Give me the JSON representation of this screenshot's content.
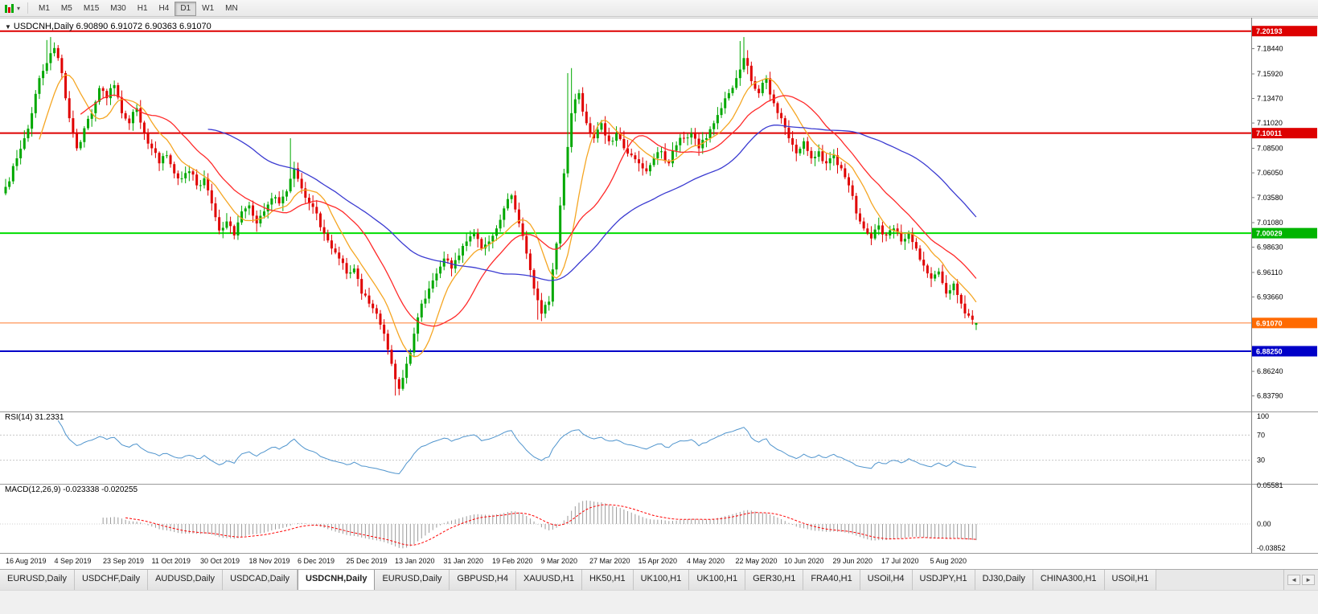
{
  "icons": {
    "caret_down": "▾",
    "caret_down_small": "▼",
    "scroll_left": "◄",
    "scroll_right": "►"
  },
  "toolbar": {
    "timeframes": [
      "M1",
      "M5",
      "M15",
      "M30",
      "H1",
      "H4",
      "D1",
      "W1",
      "MN"
    ],
    "active_timeframe": "D1"
  },
  "chart_header": {
    "text": "USDCNH,Daily  6.90890 6.91072 6.90363 6.91070"
  },
  "indicator_labels": {
    "rsi": "RSI(14) 31.2331",
    "macd": "MACD(12,26,9) -0.023338 -0.020255"
  },
  "tabs": {
    "items": [
      "EURUSD,Daily",
      "USDCHF,Daily",
      "AUDUSD,Daily",
      "USDCAD,Daily",
      "USDCNH,Daily",
      "EURUSD,Daily",
      "GBPUSD,H4",
      "XAUUSD,H1",
      "HK50,H1",
      "UK100,H1",
      "UK100,H1",
      "GER30,H1",
      "FRA40,H1",
      "USOil,H4",
      "USDJPY,H1",
      "DJ30,Daily",
      "CHINA300,H1",
      "USOil,H1"
    ],
    "active_index": 4
  },
  "chart_data": {
    "type": "candlestick",
    "symbol": "USDCNH",
    "timeframe": "Daily",
    "last_ohlc": {
      "open": 6.9089,
      "high": 6.91072,
      "low": 6.90363,
      "close": 6.9107
    },
    "colors": {
      "up": "#00a800",
      "down": "#e00000",
      "background": "#ffffff"
    },
    "closes": [
      7.052,
      7.075,
      7.095,
      7.12,
      7.155,
      7.17,
      7.185,
      7.16,
      7.115,
      7.085,
      7.105,
      7.12,
      7.145,
      7.135,
      7.148,
      7.12,
      7.11,
      7.125,
      7.1,
      7.085,
      7.07,
      7.078,
      7.06,
      7.055,
      7.062,
      7.048,
      7.055,
      7.03,
      7.003,
      7.012,
      6.998,
      7.022,
      7.028,
      7.01,
      7.022,
      7.035,
      7.03,
      7.042,
      7.065,
      7.045,
      7.03,
      7.02,
      7.0,
      6.985,
      6.975,
      6.96,
      6.965,
      6.94,
      6.93,
      6.92,
      6.9,
      6.87,
      6.845,
      6.87,
      6.9,
      6.93,
      6.945,
      6.96,
      6.975,
      6.965,
      6.978,
      6.992,
      7.0,
      6.985,
      6.992,
      7.005,
      7.025,
      7.038,
      7.01,
      6.98,
      6.945,
      6.92,
      6.932,
      6.99,
      7.06,
      7.12,
      7.14,
      7.11,
      7.095,
      7.11,
      7.092,
      7.1,
      7.085,
      7.078,
      7.07,
      7.062,
      7.075,
      7.082,
      7.07,
      7.088,
      7.095,
      7.1,
      7.085,
      7.095,
      7.11,
      7.125,
      7.14,
      7.155,
      7.175,
      7.152,
      7.14,
      7.155,
      7.13,
      7.115,
      7.095,
      7.08,
      7.092,
      7.075,
      7.082,
      7.07,
      7.078,
      7.065,
      7.048,
      7.02,
      7.005,
      6.995,
      7.008,
      6.998,
      7.005,
      6.992,
      7.0,
      6.985,
      6.968,
      6.955,
      6.962,
      6.94,
      6.95,
      6.93,
      6.918,
      6.9107
    ],
    "spikes": [
      {
        "j": 11,
        "high": 7.193
      },
      {
        "j": 12,
        "high": 7.196
      },
      {
        "j": 13,
        "high": 7.19
      },
      {
        "j": 76,
        "high": 7.095
      },
      {
        "j": 104,
        "low": 6.8382
      },
      {
        "j": 105,
        "low": 6.842
      },
      {
        "j": 142,
        "low": 6.914
      },
      {
        "j": 143,
        "low": 6.9125
      },
      {
        "j": 150,
        "high": 7.16
      },
      {
        "j": 151,
        "high": 7.165
      },
      {
        "j": 196,
        "high": 7.192
      },
      {
        "j": 197,
        "high": 7.196
      }
    ],
    "moving_averages": [
      {
        "period": 10,
        "color": "#f5a623",
        "name": "ma-fast-orange"
      },
      {
        "period": 21,
        "color": "#ff2a2a",
        "name": "ma-mid-red"
      },
      {
        "period": 55,
        "color": "#3b3bd1",
        "name": "ma-slow-blue"
      }
    ],
    "hlines": [
      {
        "value": 7.20193,
        "color": "#dd0000",
        "width": 2,
        "name": "resistance-line-upper"
      },
      {
        "value": 7.10011,
        "color": "#dd0000",
        "width": 2,
        "name": "resistance-line"
      },
      {
        "value": 7.00029,
        "color": "#00dd00",
        "width": 2,
        "name": "support-line-green"
      },
      {
        "value": 6.9107,
        "color": "#ff7b2e",
        "width": 1,
        "name": "current-price-line"
      },
      {
        "value": 6.8825,
        "color": "#0000c8",
        "width": 2,
        "name": "support-line-blue"
      }
    ],
    "badges": [
      {
        "text": "7.20193",
        "value": 7.20193,
        "bg": "#dd0000",
        "fg": "#ffffff",
        "name": "price-badge-upper-resistance"
      },
      {
        "text": "7.10011",
        "value": 7.10011,
        "bg": "#dd0000",
        "fg": "#ffffff",
        "name": "price-badge-resistance"
      },
      {
        "text": "7.00029",
        "value": 7.00029,
        "bg": "#00b400",
        "fg": "#ffffff",
        "name": "price-badge-green-support"
      },
      {
        "text": "6.91070",
        "value": 6.9107,
        "bg": "#ff6a00",
        "fg": "#ffffff",
        "name": "price-badge-current"
      },
      {
        "text": "6.88250",
        "value": 6.8825,
        "bg": "#0000c8",
        "fg": "#ffffff",
        "name": "price-badge-blue-support"
      }
    ],
    "y_ticks": [
      "7.18440",
      "7.15920",
      "7.13470",
      "7.11020",
      "7.08500",
      "7.06050",
      "7.03580",
      "7.01080",
      "6.98630",
      "6.96110",
      "6.93660",
      "6.86240",
      "6.83790"
    ],
    "x_labels": [
      "16 Aug 2019",
      "4 Sep 2019",
      "23 Sep 2019",
      "11 Oct 2019",
      "30 Oct 2019",
      "18 Nov 2019",
      "6 Dec 2019",
      "25 Dec 2019",
      "13 Jan 2020",
      "31 Jan 2020",
      "19 Feb 2020",
      "9 Mar 2020",
      "27 Mar 2020",
      "15 Apr 2020",
      "4 May 2020",
      "22 May 2020",
      "10 Jun 2020",
      "29 Jun 2020",
      "17 Jul 2020",
      "5 Aug 2020"
    ],
    "rsi": {
      "period": 14,
      "current": 31.2331,
      "color": "#4f94cd",
      "scale": [
        100,
        70,
        30
      ],
      "dashed_levels": [
        70,
        30
      ]
    },
    "macd": {
      "fast": 12,
      "slow": 26,
      "signal": 9,
      "current": [
        -0.023338,
        -0.020255
      ],
      "scale_labels": [
        "0.05581",
        "0.00",
        "-0.03852"
      ],
      "scale_values": [
        0.05581,
        0.0,
        -0.03852
      ],
      "histogram_color": "#9a9a9a",
      "signal_color": "#ff0000"
    }
  }
}
